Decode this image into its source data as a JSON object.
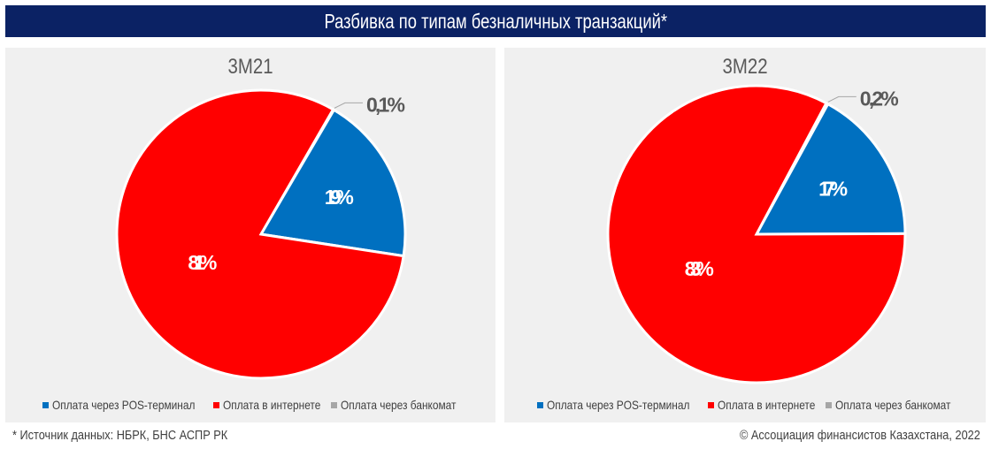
{
  "header": {
    "title": "Разбивка по типам безналичных транзакций*"
  },
  "footer": {
    "source": "* Источник данных: НБРК, БНС АСПР РК",
    "copyright": "© Ассоциация финансистов Казахстана, 2022"
  },
  "colors": {
    "header_bg": "#0b2264",
    "pos": "#0070c0",
    "internet": "#ff0000",
    "atm": "#a6a6a6",
    "panel_bg": "#f0f0f0"
  },
  "chart_data": [
    {
      "type": "pie",
      "title": "3M21",
      "labels": [
        "Оплата через банкомат",
        "Оплата через POS-терминал",
        "Оплата в интернете"
      ],
      "values": [
        0.1,
        19,
        81
      ],
      "data_labels": [
        "0,1%",
        "19%",
        "81%"
      ],
      "legend": "bottom"
    },
    {
      "type": "pie",
      "title": "3M22",
      "labels": [
        "Оплата через банкомат",
        "Оплата через POS-терминал",
        "Оплата в интернете"
      ],
      "values": [
        0.2,
        17,
        83
      ],
      "data_labels": [
        "0,2%",
        "17%",
        "83%"
      ],
      "legend": "bottom"
    }
  ],
  "legend": {
    "items": [
      {
        "label": "Оплата через POS-терминал",
        "color": "#0070c0"
      },
      {
        "label": "Оплата в интернете",
        "color": "#ff0000"
      },
      {
        "label": "Оплата через банкомат",
        "color": "#a6a6a6"
      }
    ]
  }
}
